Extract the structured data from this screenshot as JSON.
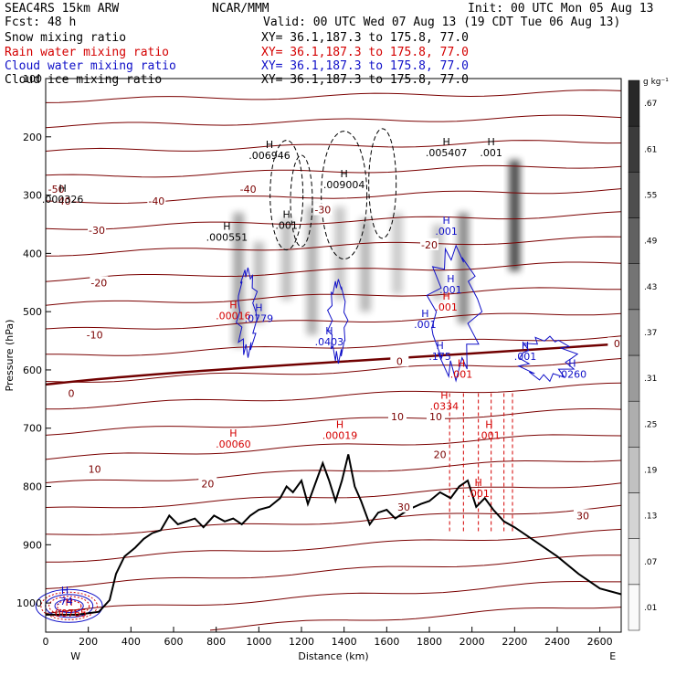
{
  "header": {
    "model": "SEAC4RS 15km ARW",
    "center": "NCAR/MMM",
    "init": "Init: 00 UTC Mon 05 Aug 13",
    "fcst": "Fcst:   48 h",
    "valid": "Valid: 00 UTC Wed 07 Aug 13 (19 CDT Tue 06 Aug 13)",
    "fields": [
      {
        "name": "Snow mixing ratio",
        "xy": "XY=  36.1,187.3 to 175.8, 77.0",
        "color": "#000000"
      },
      {
        "name": "Rain water mixing ratio",
        "xy": "XY=  36.1,187.3 to 175.8, 77.0",
        "color": "#d40000"
      },
      {
        "name": "Cloud water mixing ratio",
        "xy": "XY=  36.1,187.3 to 175.8, 77.0",
        "color": "#1010c8"
      },
      {
        "name": "Cloud ice mixing ratio",
        "xy": "XY=  36.1,187.3 to 175.8, 77.0",
        "color": "#000000"
      }
    ]
  },
  "chart_data": {
    "type": "cross-section",
    "xlabel": "Distance (km)",
    "ylabel": "Pressure (hPa)",
    "xlim": [
      0,
      2700
    ],
    "ylim": [
      1050,
      100
    ],
    "x_ticks": [
      0,
      200,
      400,
      600,
      800,
      1000,
      1200,
      1400,
      1600,
      1800,
      2000,
      2200,
      2400,
      2600
    ],
    "y_ticks": [
      100,
      200,
      300,
      400,
      500,
      600,
      700,
      800,
      900,
      1000
    ],
    "x_endpoints": {
      "left": "W",
      "right": "E"
    },
    "colorbar": {
      "unit": "g kg⁻¹",
      "levels": [
        ".01",
        ".07",
        ".13",
        ".19",
        ".25",
        ".31",
        ".37",
        ".43",
        ".49",
        ".55",
        ".61",
        ".67"
      ]
    },
    "temperature_contours": [
      {
        "label": "-50",
        "x": 50,
        "p": 290
      },
      {
        "label": "-40",
        "x": 80,
        "p": 310
      },
      {
        "label": "-40",
        "x": 520,
        "p": 310
      },
      {
        "label": "-40",
        "x": 950,
        "p": 290
      },
      {
        "label": "-30",
        "x": 240,
        "p": 360
      },
      {
        "label": "-30",
        "x": 1300,
        "p": 325
      },
      {
        "label": "-20",
        "x": 250,
        "p": 450
      },
      {
        "label": "-20",
        "x": 1800,
        "p": 385
      },
      {
        "label": "-10",
        "x": 230,
        "p": 540
      },
      {
        "label": "0",
        "x": 120,
        "p": 640
      },
      {
        "label": "0",
        "x": 1660,
        "p": 585
      },
      {
        "label": "0",
        "x": 2680,
        "p": 555
      },
      {
        "label": "10",
        "x": 230,
        "p": 770
      },
      {
        "label": "10",
        "x": 1650,
        "p": 680
      },
      {
        "label": "10",
        "x": 1830,
        "p": 680
      },
      {
        "label": "20",
        "x": 760,
        "p": 795
      },
      {
        "label": "20",
        "x": 1850,
        "p": 745
      },
      {
        "label": "30",
        "x": 1680,
        "p": 835
      },
      {
        "label": "30",
        "x": 2520,
        "p": 850
      }
    ],
    "maxima_labels": [
      {
        "field": "snow",
        "value": ".006946",
        "x": 1050,
        "p": 235
      },
      {
        "field": "snow",
        "value": ".005407",
        "x": 1880,
        "p": 230
      },
      {
        "field": "snow",
        "value": ".009004",
        "x": 1400,
        "p": 285
      },
      {
        "field": "snow",
        "value": ".000326",
        "x": 80,
        "p": 310
      },
      {
        "field": "snow",
        "value": ".000551",
        "x": 850,
        "p": 375
      },
      {
        "field": "snow",
        "value": ".001",
        "x": 1130,
        "p": 355
      },
      {
        "field": "snow",
        "value": ".001",
        "x": 2090,
        "p": 230
      },
      {
        "field": "rain",
        "value": ".00016",
        "x": 880,
        "p": 510
      },
      {
        "field": "rain",
        "value": ".00060",
        "x": 880,
        "p": 730
      },
      {
        "field": "rain",
        "value": ".00019",
        "x": 1380,
        "p": 715
      },
      {
        "field": "rain",
        "value": ".0334",
        "x": 1870,
        "p": 665
      },
      {
        "field": "rain",
        "value": ".001",
        "x": 1950,
        "p": 610
      },
      {
        "field": "rain",
        "value": ".001",
        "x": 2080,
        "p": 715
      },
      {
        "field": "rain",
        "value": ".001",
        "x": 2030,
        "p": 815
      },
      {
        "field": "rain",
        "value": ".001",
        "x": 1880,
        "p": 495
      },
      {
        "field": "rain",
        "value": ".00765",
        "x": 110,
        "p": 1020
      },
      {
        "field": "cloud_water",
        "value": ".0779",
        "x": 1000,
        "p": 515
      },
      {
        "field": "cloud_water",
        "value": ".0403",
        "x": 1330,
        "p": 555
      },
      {
        "field": "cloud_water",
        "value": ".001",
        "x": 1780,
        "p": 525
      },
      {
        "field": "cloud_water",
        "value": ".001",
        "x": 1880,
        "p": 365
      },
      {
        "field": "cloud_water",
        "value": ".001",
        "x": 1900,
        "p": 465
      },
      {
        "field": "cloud_water",
        "value": ".175",
        "x": 1850,
        "p": 580
      },
      {
        "field": "cloud_water",
        "value": ".001",
        "x": 2250,
        "p": 580
      },
      {
        "field": "cloud_water",
        "value": ".0260",
        "x": 2470,
        "p": 610
      },
      {
        "field": "cloud_water",
        "value": ".74",
        "x": 90,
        "p": 1000
      }
    ],
    "terrain": [
      [
        0,
        1020
      ],
      [
        150,
        1020
      ],
      [
        250,
        1015
      ],
      [
        300,
        995
      ],
      [
        330,
        950
      ],
      [
        370,
        920
      ],
      [
        420,
        905
      ],
      [
        460,
        890
      ],
      [
        500,
        880
      ],
      [
        540,
        875
      ],
      [
        580,
        850
      ],
      [
        620,
        865
      ],
      [
        660,
        860
      ],
      [
        700,
        855
      ],
      [
        740,
        870
      ],
      [
        790,
        850
      ],
      [
        840,
        860
      ],
      [
        880,
        855
      ],
      [
        920,
        865
      ],
      [
        960,
        850
      ],
      [
        1000,
        840
      ],
      [
        1050,
        835
      ],
      [
        1100,
        820
      ],
      [
        1130,
        800
      ],
      [
        1160,
        810
      ],
      [
        1200,
        790
      ],
      [
        1230,
        830
      ],
      [
        1260,
        800
      ],
      [
        1300,
        760
      ],
      [
        1330,
        790
      ],
      [
        1360,
        825
      ],
      [
        1390,
        790
      ],
      [
        1420,
        745
      ],
      [
        1450,
        800
      ],
      [
        1480,
        825
      ],
      [
        1520,
        865
      ],
      [
        1560,
        845
      ],
      [
        1600,
        840
      ],
      [
        1640,
        855
      ],
      [
        1700,
        840
      ],
      [
        1760,
        830
      ],
      [
        1800,
        825
      ],
      [
        1850,
        810
      ],
      [
        1900,
        820
      ],
      [
        1940,
        800
      ],
      [
        1980,
        790
      ],
      [
        2020,
        835
      ],
      [
        2060,
        820
      ],
      [
        2100,
        840
      ],
      [
        2150,
        860
      ],
      [
        2200,
        870
      ],
      [
        2300,
        895
      ],
      [
        2400,
        920
      ],
      [
        2500,
        950
      ],
      [
        2600,
        975
      ],
      [
        2700,
        985
      ]
    ]
  }
}
